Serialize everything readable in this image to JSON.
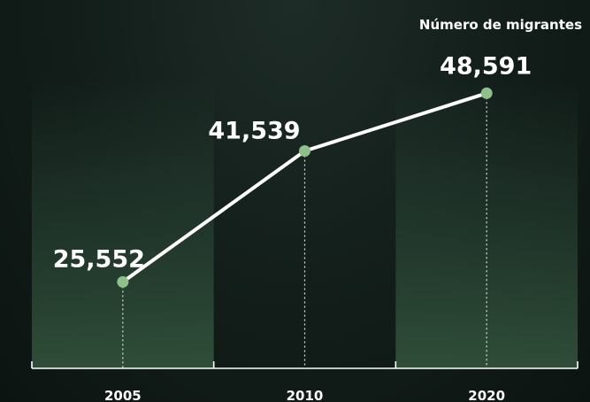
{
  "chart_data": {
    "type": "line",
    "title": "Número de migrantes",
    "categories": [
      "2005",
      "2010",
      "2020"
    ],
    "values": [
      25552,
      41539,
      48591
    ],
    "data_labels": [
      "25,552",
      "41,539",
      "48,591"
    ],
    "ylim": [
      15000,
      55000
    ],
    "grid": false,
    "colors": {
      "line": "#ffffff",
      "marker": "#8fbf8a",
      "column_band": "#2e4d3c",
      "background": "#121d19"
    }
  }
}
